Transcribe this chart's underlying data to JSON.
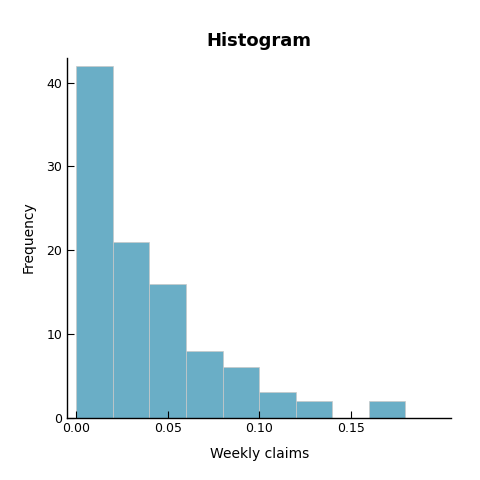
{
  "title": "Histogram",
  "xlabel": "Weekly claims",
  "ylabel": "Frequency",
  "bar_color": "#6aaec6",
  "bar_edgecolor": "#c8c8c8",
  "bins": [
    0.0,
    0.02,
    0.04,
    0.06,
    0.08,
    0.1,
    0.12,
    0.14,
    0.16,
    0.18,
    0.2
  ],
  "heights": [
    42,
    21,
    16,
    8,
    6,
    3,
    2,
    0,
    2,
    0
  ],
  "xlim": [
    -0.005,
    0.205
  ],
  "ylim": [
    0,
    43
  ],
  "yticks": [
    0,
    10,
    20,
    30,
    40
  ],
  "xticks": [
    0.0,
    0.05,
    0.1,
    0.15
  ],
  "background_color": "#ffffff",
  "panel_background": "#ebebeb",
  "title_fontsize": 13,
  "label_fontsize": 10,
  "tick_fontsize": 9
}
